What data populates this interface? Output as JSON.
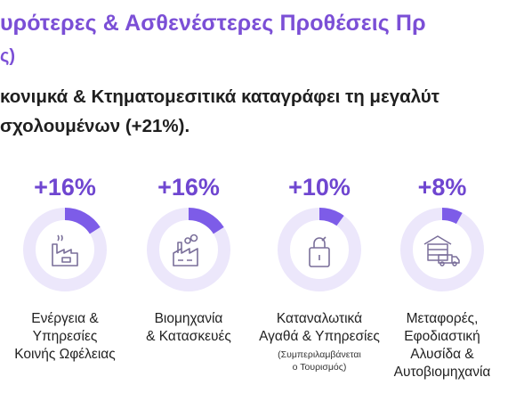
{
  "header": {
    "title": "υρότερες & Ασθενέστερες Προθέσεις Πρ",
    "title_continuation": "ς)",
    "subtitle_line1": "κονιμκά & Κτηματομεσιτικά καταγράφει τη μεγαλύτ",
    "subtitle_line2": "σχολουμένων (+21%)."
  },
  "colors": {
    "accent": "#7b4fd6",
    "ring_fill": "#7d5ce8",
    "ring_track": "#ece7fb",
    "icon": "#7a6f9a"
  },
  "sectors": [
    {
      "percent": "+16%",
      "value": 16,
      "icon": "factory-chimney-icon",
      "label_lines": [
        "Ενέργεια &",
        "Υπηρεσίες",
        "Κοινής Ωφέλειας"
      ],
      "note_lines": []
    },
    {
      "percent": "+16%",
      "value": 16,
      "icon": "factory-smoke-icon",
      "label_lines": [
        "Βιομηχανία",
        "& Κατασκευές"
      ],
      "note_lines": []
    },
    {
      "percent": "+10%",
      "value": 10,
      "icon": "shopping-bag-icon",
      "label_lines": [
        "Καταναλωτικά",
        "Αγαθά & Υπηρεσίες"
      ],
      "note_lines": [
        "(Συμπεριλαμβάνεται",
        "ο Τουρισμός)"
      ]
    },
    {
      "percent": "+8%",
      "value": 8,
      "icon": "warehouse-truck-icon",
      "label_lines": [
        "Μεταφορές,",
        "Εφοδιαστική",
        "Αλυσίδα &",
        "Αυτοβιομηχανία"
      ],
      "note_lines": []
    }
  ]
}
